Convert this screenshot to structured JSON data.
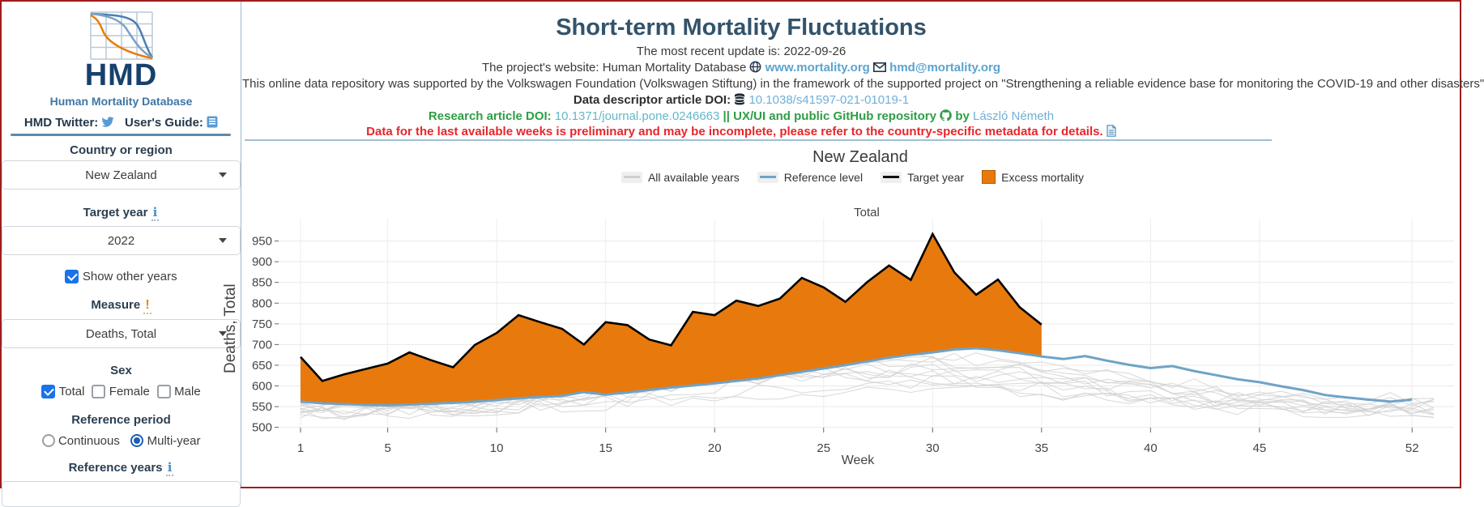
{
  "sidebar": {
    "logo": {
      "acronym": "HMD",
      "name": "Human Mortality Database"
    },
    "links_row": {
      "twitter_label": "HMD Twitter:",
      "guide_label": "User's Guide:"
    },
    "country": {
      "label": "Country or region",
      "value": "New Zealand"
    },
    "target_year": {
      "label": "Target year",
      "value": "2022",
      "has_info_icon": true
    },
    "show_other_years": {
      "label": "Show other years",
      "checked": true
    },
    "measure": {
      "label": "Measure",
      "value": "Deaths, Total",
      "has_warning_icon": true
    },
    "sex": {
      "label": "Sex",
      "options": [
        {
          "label": "Total",
          "checked": true
        },
        {
          "label": "Female",
          "checked": false
        },
        {
          "label": "Male",
          "checked": false
        }
      ]
    },
    "reference_period": {
      "label": "Reference period",
      "options": [
        {
          "label": "Continuous",
          "selected": false
        },
        {
          "label": "Multi-year",
          "selected": true
        }
      ]
    },
    "reference_years": {
      "label": "Reference years",
      "has_info_icon": true
    }
  },
  "header": {
    "title": "Short-term Mortality Fluctuations",
    "update_line": "The most recent update is: 2022-09-26",
    "website_line": {
      "prefix": "The project's website: Human Mortality Database",
      "site": "www.mortality.org",
      "email": "hmd@mortality.org"
    },
    "support_line": "This online data repository was supported by the Volkswagen Foundation (Volkswagen Stiftung) in the framework of the supported project on \"Strengthening a reliable evidence base for monitoring the COVID-19 and other disasters\"",
    "doi_line": {
      "label": "Data descriptor article DOI:",
      "doi": "10.1038/s41597-021-01019-1"
    },
    "research_line": {
      "label": "Research article DOI:",
      "doi": "10.1371/journal.pone.0246663",
      "repo_label": "|| UX/UI and public GitHub repository",
      "by": "by",
      "author": "László Németh"
    },
    "warning": "Data for the last available weeks is preliminary and may be incomplete, please refer to the country-specific metadata for details."
  },
  "chart_data": {
    "type": "line",
    "title": "New Zealand",
    "subtitle": "Total",
    "xlabel": "Week",
    "ylabel": "Deaths, Total",
    "legend": [
      "All available years",
      "Reference level",
      "Target year",
      "Excess mortality"
    ],
    "legend_position": "top-center",
    "grid": true,
    "x_ticks": [
      1,
      5,
      10,
      15,
      20,
      25,
      30,
      35,
      40,
      45,
      52
    ],
    "y_ticks": [
      500,
      550,
      600,
      650,
      700,
      750,
      800,
      850,
      900,
      950
    ],
    "xlim": [
      1,
      54
    ],
    "ylim": [
      480,
      1005
    ],
    "colors": {
      "all_years": "#cfcfcf",
      "reference": "#6fa3c7",
      "target": "#000000",
      "excess": "#e8790d"
    },
    "series": [
      {
        "name": "Target year",
        "role": "target",
        "week_start": 1,
        "values": [
          670,
          612,
          628,
          641,
          654,
          681,
          662,
          645,
          699,
          728,
          771,
          754,
          738,
          700,
          754,
          747,
          712,
          698,
          779,
          771,
          806,
          793,
          811,
          861,
          838,
          803,
          851,
          891,
          856,
          967,
          874,
          820,
          857,
          790,
          748
        ]
      },
      {
        "name": "Reference level",
        "role": "reference",
        "week_start": 1,
        "values": [
          562,
          558,
          556,
          554,
          553,
          555,
          557,
          559,
          562,
          566,
          570,
          573,
          576,
          585,
          579,
          584,
          590,
          596,
          601,
          606,
          612,
          618,
          626,
          634,
          642,
          650,
          659,
          668,
          675,
          681,
          688,
          691,
          686,
          679,
          671,
          665,
          672,
          661,
          651,
          643,
          648,
          636,
          626,
          616,
          609,
          599,
          590,
          578,
          572,
          567,
          562,
          567
        ]
      }
    ],
    "excess_fill_between": [
      "Target year",
      "Reference level"
    ],
    "background_years": {
      "count": 12,
      "seed": 11,
      "weeks": 53,
      "min": 486,
      "max": 708,
      "note": "unlabeled grey lines for all available historical years"
    }
  }
}
